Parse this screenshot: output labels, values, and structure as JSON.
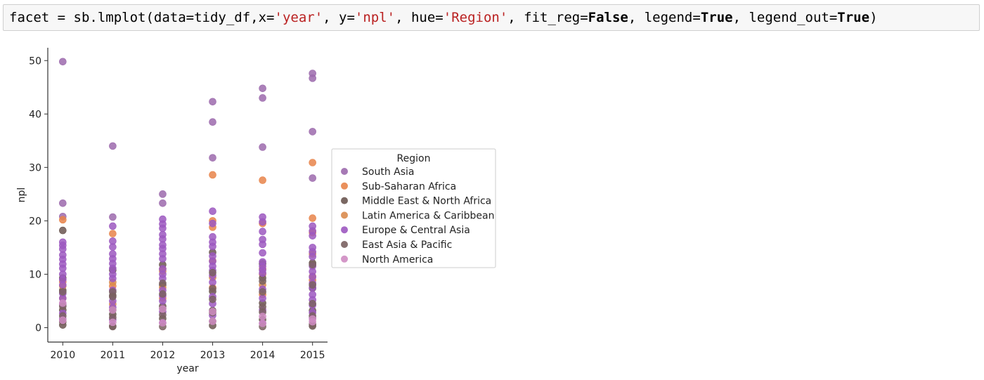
{
  "code_cell": {
    "tokens": [
      {
        "t": "facet = sb.lmplot(data=tidy_df,x=",
        "c": "plain"
      },
      {
        "t": "'year'",
        "c": "str"
      },
      {
        "t": ", y=",
        "c": "plain"
      },
      {
        "t": "'npl'",
        "c": "str"
      },
      {
        "t": ", hue=",
        "c": "plain"
      },
      {
        "t": "'Region'",
        "c": "str"
      },
      {
        "t": ", fit_reg=",
        "c": "plain"
      },
      {
        "t": "False",
        "c": "kw"
      },
      {
        "t": ", legend=",
        "c": "plain"
      },
      {
        "t": "True",
        "c": "kw"
      },
      {
        "t": ", legend_out=",
        "c": "plain"
      },
      {
        "t": "True",
        "c": "kw"
      },
      {
        "t": ")",
        "c": "plain"
      }
    ]
  },
  "chart_data": {
    "type": "scatter",
    "title": "",
    "xlabel": "year",
    "ylabel": "npl",
    "xticks": [
      2010,
      2011,
      2012,
      2013,
      2014,
      2015
    ],
    "yticks": [
      0,
      10,
      20,
      30,
      40,
      50
    ],
    "xlim": [
      2009.7,
      2015.3
    ],
    "ylim": [
      -2.7,
      52.4
    ],
    "legend": {
      "title": "Region",
      "placement": "right-outside"
    },
    "series": [
      {
        "name": "South Asia",
        "color": "#9c6aad",
        "points": [
          [
            2010,
            49.8
          ],
          [
            2010,
            23.3
          ],
          [
            2010,
            20.8
          ],
          [
            2011,
            34
          ],
          [
            2011,
            20.7
          ],
          [
            2012,
            25
          ],
          [
            2012,
            23.3
          ],
          [
            2013,
            42.3
          ],
          [
            2013,
            38.5
          ],
          [
            2013,
            31.8
          ],
          [
            2014,
            44.8
          ],
          [
            2014,
            43
          ],
          [
            2014,
            33.8
          ],
          [
            2015,
            47.6
          ],
          [
            2015,
            46.7
          ],
          [
            2015,
            36.7
          ],
          [
            2015,
            28
          ]
        ]
      },
      {
        "name": "Sub-Saharan Africa",
        "color": "#e8844a",
        "points": [
          [
            2010,
            20.2
          ],
          [
            2010,
            8.6
          ],
          [
            2011,
            17.6
          ],
          [
            2011,
            7.8
          ],
          [
            2012,
            11
          ],
          [
            2012,
            5.5
          ],
          [
            2013,
            28.6
          ],
          [
            2013,
            20
          ],
          [
            2013,
            18.8
          ],
          [
            2013,
            7.5
          ],
          [
            2014,
            27.6
          ],
          [
            2014,
            19.5
          ],
          [
            2014,
            10
          ],
          [
            2014,
            6.2
          ],
          [
            2015,
            30.9
          ],
          [
            2015,
            20.5
          ],
          [
            2015,
            17.8
          ],
          [
            2015,
            8.9
          ]
        ]
      },
      {
        "name": "Middle East & North Africa",
        "color": "#6b5651",
        "points": [
          [
            2010,
            18.2
          ],
          [
            2010,
            9.3
          ],
          [
            2010,
            7
          ],
          [
            2010,
            3.3
          ],
          [
            2010,
            0.5
          ],
          [
            2011,
            10.8
          ],
          [
            2011,
            6
          ],
          [
            2011,
            2.5
          ],
          [
            2011,
            0.3
          ],
          [
            2012,
            11.8
          ],
          [
            2012,
            8
          ],
          [
            2012,
            4
          ],
          [
            2012,
            1.7
          ],
          [
            2013,
            14.1
          ],
          [
            2013,
            6.8
          ],
          [
            2013,
            3.2
          ],
          [
            2013,
            0.4
          ],
          [
            2014,
            12
          ],
          [
            2014,
            9.3
          ],
          [
            2014,
            4.6
          ],
          [
            2014,
            1.5
          ],
          [
            2015,
            12.1
          ],
          [
            2015,
            7.4
          ],
          [
            2015,
            3.2
          ],
          [
            2015,
            0.3
          ]
        ]
      },
      {
        "name": "Latin America & Caribbean",
        "color": "#d98b4e",
        "points": [
          [
            2010,
            7.8
          ],
          [
            2010,
            5.5
          ],
          [
            2011,
            8.5
          ],
          [
            2011,
            4.4
          ],
          [
            2012,
            10.6
          ],
          [
            2012,
            7.5
          ],
          [
            2013,
            12.5
          ],
          [
            2013,
            9.4
          ],
          [
            2014,
            11
          ],
          [
            2014,
            8
          ],
          [
            2015,
            13.8
          ],
          [
            2015,
            9.6
          ]
        ]
      },
      {
        "name": "Europe & Central Asia",
        "color": "#9c58c0",
        "points": [
          [
            2010,
            16
          ],
          [
            2010,
            15.4
          ],
          [
            2010,
            14.7
          ],
          [
            2010,
            13.6
          ],
          [
            2010,
            12.8
          ],
          [
            2010,
            11.9
          ],
          [
            2010,
            11.1
          ],
          [
            2010,
            10
          ],
          [
            2010,
            9
          ],
          [
            2010,
            8
          ],
          [
            2010,
            6.4
          ],
          [
            2010,
            5.5
          ],
          [
            2010,
            4.4
          ],
          [
            2010,
            2.7
          ],
          [
            2010,
            1.6
          ],
          [
            2011,
            19
          ],
          [
            2011,
            16.2
          ],
          [
            2011,
            15.1
          ],
          [
            2011,
            13.8
          ],
          [
            2011,
            12.9
          ],
          [
            2011,
            12
          ],
          [
            2011,
            11.1
          ],
          [
            2011,
            10
          ],
          [
            2011,
            9.2
          ],
          [
            2011,
            7
          ],
          [
            2011,
            5
          ],
          [
            2011,
            3.8
          ],
          [
            2011,
            1.5
          ],
          [
            2012,
            20.3
          ],
          [
            2012,
            19.4
          ],
          [
            2012,
            18.6
          ],
          [
            2012,
            17.4
          ],
          [
            2012,
            16.6
          ],
          [
            2012,
            15.5
          ],
          [
            2012,
            14.8
          ],
          [
            2012,
            13.8
          ],
          [
            2012,
            12.9
          ],
          [
            2012,
            11
          ],
          [
            2012,
            10
          ],
          [
            2012,
            9.2
          ],
          [
            2012,
            7
          ],
          [
            2012,
            6
          ],
          [
            2012,
            5
          ],
          [
            2012,
            3
          ],
          [
            2012,
            0.9
          ],
          [
            2013,
            21.8
          ],
          [
            2013,
            19.5
          ],
          [
            2013,
            17
          ],
          [
            2013,
            16
          ],
          [
            2013,
            15.2
          ],
          [
            2013,
            13.4
          ],
          [
            2013,
            12.4
          ],
          [
            2013,
            11.5
          ],
          [
            2013,
            10.7
          ],
          [
            2013,
            9.8
          ],
          [
            2013,
            8.5
          ],
          [
            2013,
            5.8
          ],
          [
            2013,
            4.5
          ],
          [
            2013,
            2.3
          ],
          [
            2014,
            20.7
          ],
          [
            2014,
            19.8
          ],
          [
            2014,
            18
          ],
          [
            2014,
            16.5
          ],
          [
            2014,
            15.6
          ],
          [
            2014,
            14
          ],
          [
            2014,
            12.3
          ],
          [
            2014,
            11.5
          ],
          [
            2014,
            10.8
          ],
          [
            2014,
            10.2
          ],
          [
            2014,
            7.2
          ],
          [
            2014,
            5.5
          ],
          [
            2014,
            3.3
          ],
          [
            2014,
            0.8
          ],
          [
            2015,
            19
          ],
          [
            2015,
            18.1
          ],
          [
            2015,
            17.2
          ],
          [
            2015,
            15
          ],
          [
            2015,
            14.2
          ],
          [
            2015,
            13.3
          ],
          [
            2015,
            11.5
          ],
          [
            2015,
            10.5
          ],
          [
            2015,
            9.5
          ],
          [
            2015,
            8.3
          ],
          [
            2015,
            7.5
          ],
          [
            2015,
            6.2
          ],
          [
            2015,
            5.2
          ],
          [
            2015,
            4.2
          ],
          [
            2015,
            2.8
          ],
          [
            2015,
            1.8
          ]
        ]
      },
      {
        "name": "East Asia & Pacific",
        "color": "#7a6060",
        "points": [
          [
            2010,
            6.7
          ],
          [
            2010,
            4
          ],
          [
            2010,
            2.2
          ],
          [
            2010,
            1.1
          ],
          [
            2011,
            6.7
          ],
          [
            2011,
            5.8
          ],
          [
            2011,
            3.3
          ],
          [
            2011,
            1.9
          ],
          [
            2011,
            0.2
          ],
          [
            2012,
            8.3
          ],
          [
            2012,
            6.3
          ],
          [
            2012,
            3.6
          ],
          [
            2012,
            2.4
          ],
          [
            2012,
            0.2
          ],
          [
            2013,
            10.3
          ],
          [
            2013,
            7.3
          ],
          [
            2013,
            5.3
          ],
          [
            2013,
            2.8
          ],
          [
            2013,
            1.2
          ],
          [
            2014,
            8.7
          ],
          [
            2014,
            6.7
          ],
          [
            2014,
            3.9
          ],
          [
            2014,
            2.9
          ],
          [
            2014,
            0.2
          ],
          [
            2015,
            11.8
          ],
          [
            2015,
            8
          ],
          [
            2015,
            4.5
          ],
          [
            2015,
            2.2
          ],
          [
            2015,
            0.6
          ]
        ]
      },
      {
        "name": "North America",
        "color": "#cf8cc2",
        "points": [
          [
            2010,
            4.6
          ],
          [
            2010,
            1.4
          ],
          [
            2011,
            3.3
          ],
          [
            2011,
            1
          ],
          [
            2012,
            3.5
          ],
          [
            2012,
            0.9
          ],
          [
            2013,
            3
          ],
          [
            2013,
            1.2
          ],
          [
            2014,
            2.1
          ],
          [
            2014,
            0.8
          ],
          [
            2015,
            1.6
          ],
          [
            2015,
            1.1
          ]
        ]
      }
    ]
  }
}
